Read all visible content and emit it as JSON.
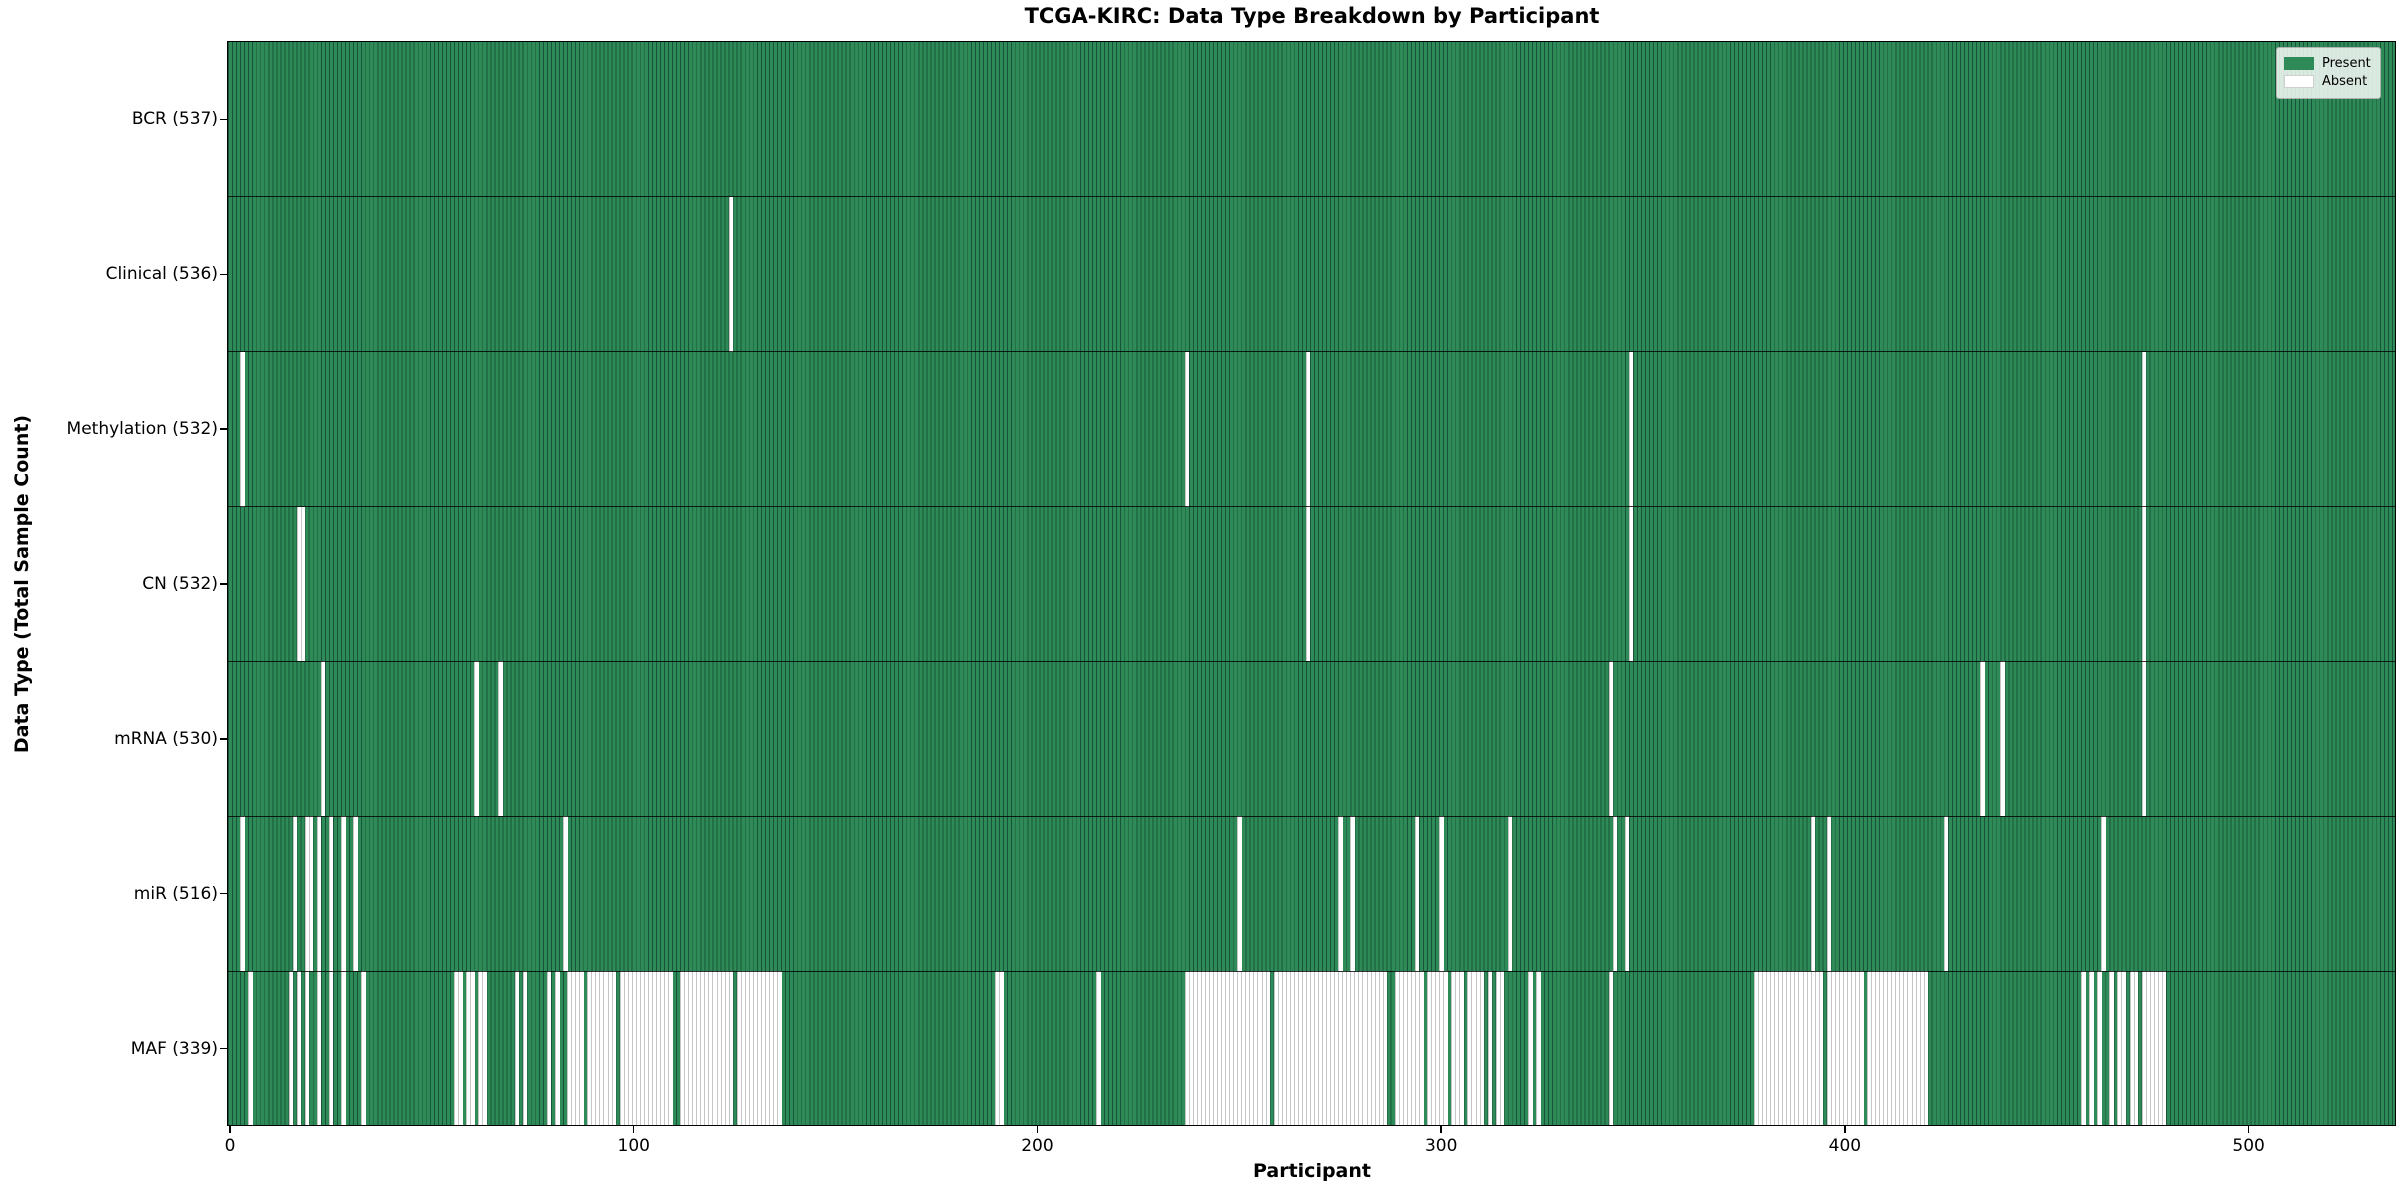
{
  "title": "TCGA-KIRC: Data Type Breakdown by Participant",
  "xlabel": "Participant",
  "ylabel": "Data Type (Total Sample Count)",
  "legend": {
    "present_label": "Present",
    "absent_label": "Absent"
  },
  "colors": {
    "present": "#2e8b57",
    "present_edge": "#17533a",
    "absent": "#ffffff",
    "absent_edge": "#c6c6c6"
  },
  "chart_data": {
    "type": "heatmap",
    "title": "TCGA-KIRC: Data Type Breakdown by Participant",
    "xlabel": "Participant",
    "ylabel": "Data Type (Total Sample Count)",
    "x_ticks": [
      0,
      100,
      200,
      300,
      400,
      500
    ],
    "x_range": [
      0,
      537
    ],
    "n_participants": 537,
    "grid": false,
    "legend_position": "upper right",
    "legend_entries": [
      {
        "label": "Present",
        "color": "#2e8b57"
      },
      {
        "label": "Absent",
        "color": "#ffffff"
      }
    ],
    "rows": [
      {
        "label": "BCR (537)",
        "data_type": "BCR",
        "total": 537,
        "absent_participants": []
      },
      {
        "label": "Clinical (536)",
        "data_type": "Clinical",
        "total": 536,
        "absent_participants": [
          124
        ]
      },
      {
        "label": "Methylation (532)",
        "data_type": "Methylation",
        "total": 532,
        "absent_participants": [
          3,
          237,
          267,
          347,
          474
        ]
      },
      {
        "label": "CN (532)",
        "data_type": "CN",
        "total": 532,
        "absent_participants": [
          17,
          18,
          267,
          347,
          474
        ]
      },
      {
        "label": "mRNA (530)",
        "data_type": "mRNA",
        "total": 530,
        "absent_participants": [
          23,
          61,
          67,
          342,
          434,
          439,
          474
        ]
      },
      {
        "label": "miR (516)",
        "data_type": "miR",
        "total": 516,
        "absent_participants": [
          3,
          16,
          19,
          20,
          22,
          25,
          28,
          31,
          83,
          250,
          275,
          278,
          294,
          300,
          317,
          343,
          346,
          392,
          396,
          425,
          464
        ]
      },
      {
        "label": "MAF (339)",
        "data_type": "MAF",
        "total": 339,
        "absent_participants": [
          5,
          15,
          17,
          19,
          22,
          25,
          28,
          33,
          56,
          57,
          59,
          60,
          62,
          63,
          71,
          73,
          79,
          81,
          84,
          85,
          86,
          87,
          89,
          90,
          91,
          92,
          93,
          94,
          95,
          97,
          98,
          99,
          100,
          101,
          102,
          103,
          104,
          105,
          106,
          107,
          108,
          109,
          112,
          113,
          114,
          115,
          116,
          117,
          118,
          119,
          120,
          121,
          122,
          123,
          124,
          126,
          127,
          128,
          129,
          130,
          131,
          132,
          133,
          134,
          135,
          136,
          190,
          191,
          215,
          237,
          238,
          239,
          240,
          241,
          242,
          243,
          244,
          245,
          246,
          247,
          248,
          249,
          250,
          251,
          252,
          253,
          254,
          255,
          256,
          257,
          259,
          260,
          261,
          262,
          263,
          264,
          265,
          266,
          267,
          268,
          269,
          270,
          271,
          272,
          273,
          274,
          275,
          276,
          277,
          278,
          279,
          280,
          281,
          282,
          283,
          284,
          285,
          286,
          289,
          290,
          291,
          292,
          293,
          294,
          295,
          297,
          298,
          299,
          300,
          301,
          303,
          304,
          305,
          307,
          308,
          309,
          310,
          312,
          314,
          315,
          322,
          324,
          342,
          378,
          379,
          380,
          381,
          382,
          383,
          384,
          385,
          386,
          387,
          388,
          389,
          390,
          391,
          392,
          393,
          394,
          396,
          397,
          398,
          399,
          400,
          401,
          402,
          403,
          404,
          406,
          407,
          408,
          409,
          410,
          411,
          412,
          413,
          414,
          415,
          416,
          417,
          418,
          419,
          420,
          459,
          461,
          463,
          466,
          468,
          469,
          471,
          472,
          474,
          475,
          476,
          477,
          478,
          479
        ]
      }
    ]
  }
}
